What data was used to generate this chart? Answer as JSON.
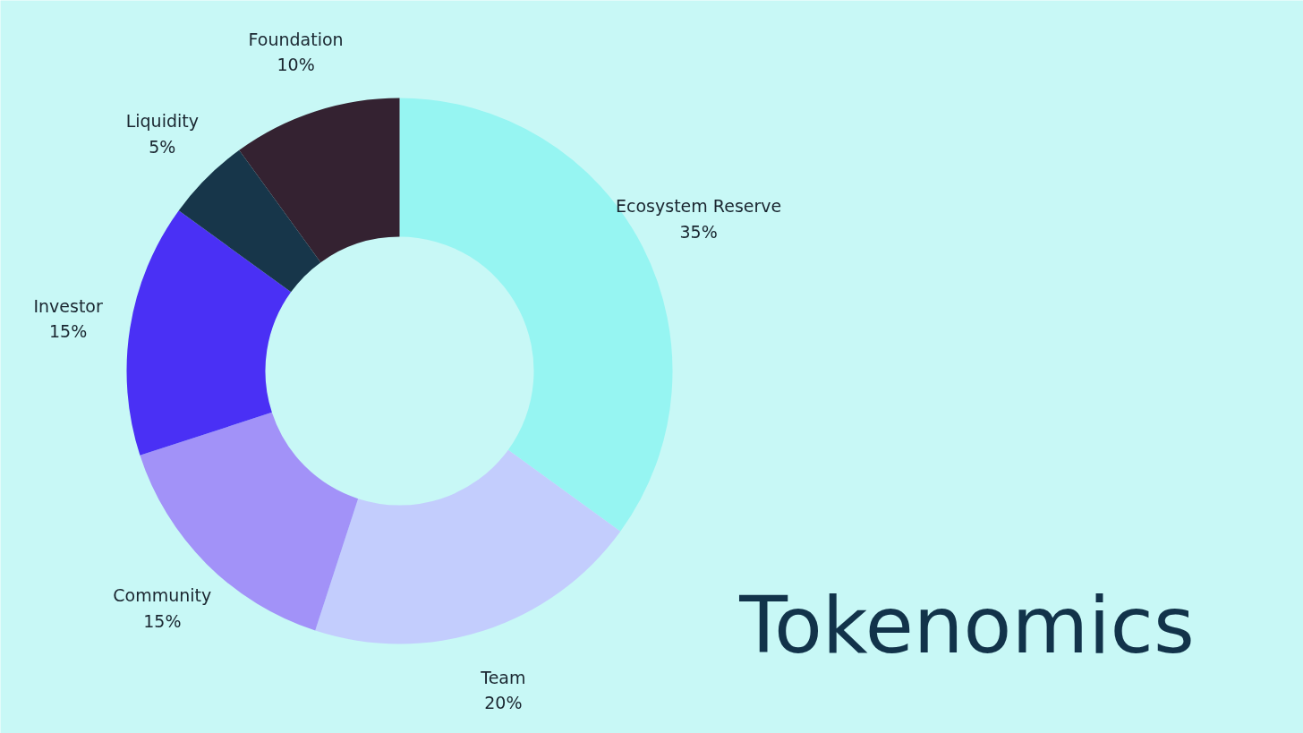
{
  "chart_data": {
    "type": "donut",
    "title": "Tokenomics",
    "categories": [
      "Ecosystem Reserve",
      "Team",
      "Community",
      "Investor",
      "Liquidity",
      "Foundation"
    ],
    "values": [
      35,
      20,
      15,
      15,
      5,
      10
    ],
    "value_labels": [
      "35%",
      "20%",
      "15%",
      "15%",
      "5%",
      "10%"
    ],
    "colors": [
      "#96f5f2",
      "#c3cdfd",
      "#a292f8",
      "#4a30f5",
      "#17364a",
      "#342231"
    ]
  }
}
